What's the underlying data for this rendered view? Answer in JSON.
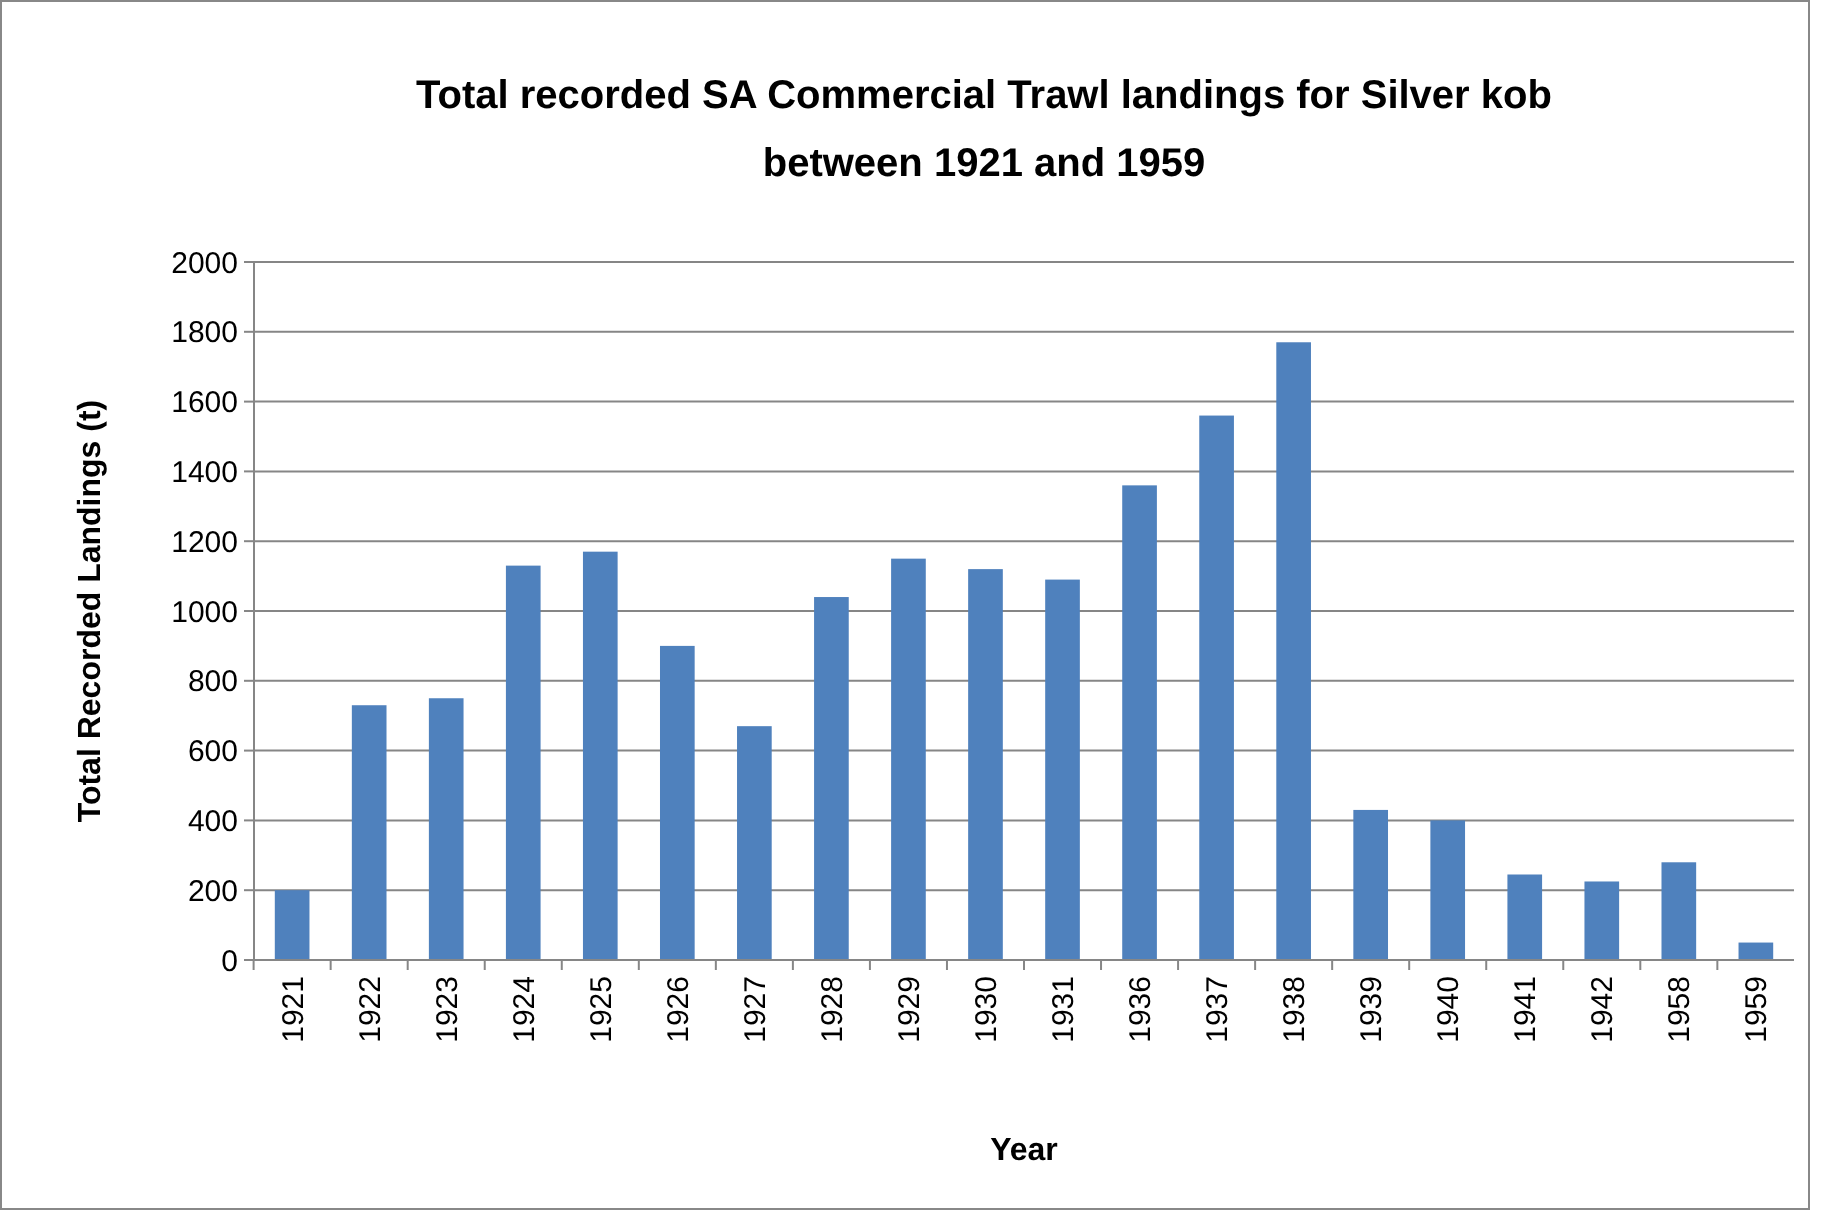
{
  "chart_data": {
    "type": "bar",
    "title": "Total recorded SA Commercial Trawl landings for Silver kob between 1921 and 1959",
    "xlabel": "Year",
    "ylabel": "Total Recorded Landings (t)",
    "categories": [
      "1921",
      "1922",
      "1923",
      "1924",
      "1925",
      "1926",
      "1927",
      "1928",
      "1929",
      "1930",
      "1931",
      "1936",
      "1937",
      "1938",
      "1939",
      "1940",
      "1941",
      "1942",
      "1958",
      "1959"
    ],
    "values": [
      200,
      730,
      750,
      1130,
      1170,
      900,
      670,
      1040,
      1150,
      1120,
      1090,
      1360,
      1560,
      1770,
      430,
      400,
      245,
      225,
      280,
      50
    ],
    "color": "#4f81bd",
    "ylim": [
      0,
      2000
    ],
    "yticks": [
      0,
      200,
      400,
      600,
      800,
      1000,
      1200,
      1400,
      1600,
      1800,
      2000
    ],
    "grid": "y"
  }
}
